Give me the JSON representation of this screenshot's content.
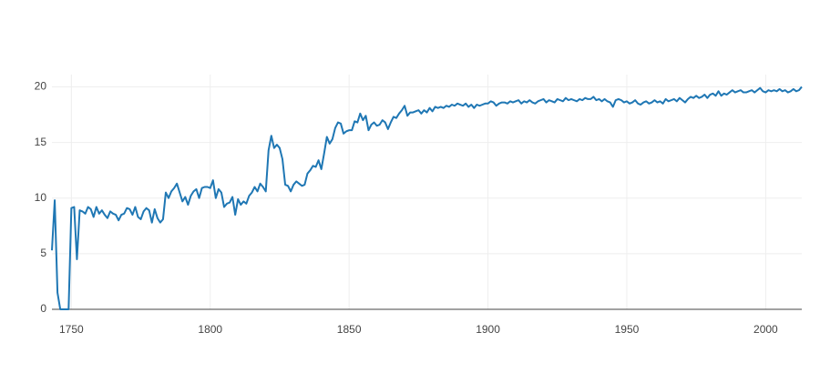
{
  "chart_data": {
    "type": "line",
    "color": "#1f77b4",
    "grid": true,
    "xlim": [
      1743,
      2013
    ],
    "xticks": [
      1750,
      1800,
      1850,
      1900,
      1950,
      2000
    ],
    "ylim": [
      0,
      21.1
    ],
    "yticks": [
      0,
      5,
      10,
      15,
      20
    ],
    "x": [
      1743,
      1744,
      1745,
      1746,
      1747,
      1748,
      1749,
      1750,
      1751,
      1752,
      1753,
      1754,
      1755,
      1756,
      1757,
      1758,
      1759,
      1760,
      1761,
      1762,
      1763,
      1764,
      1765,
      1766,
      1767,
      1768,
      1769,
      1770,
      1771,
      1772,
      1773,
      1774,
      1775,
      1776,
      1777,
      1778,
      1779,
      1780,
      1781,
      1782,
      1783,
      1784,
      1785,
      1786,
      1787,
      1788,
      1789,
      1790,
      1791,
      1792,
      1793,
      1794,
      1795,
      1796,
      1797,
      1798,
      1799,
      1800,
      1801,
      1802,
      1803,
      1804,
      1805,
      1806,
      1807,
      1808,
      1809,
      1810,
      1811,
      1812,
      1813,
      1814,
      1815,
      1816,
      1817,
      1818,
      1819,
      1820,
      1821,
      1822,
      1823,
      1824,
      1825,
      1826,
      1827,
      1828,
      1829,
      1830,
      1831,
      1832,
      1833,
      1834,
      1835,
      1836,
      1837,
      1838,
      1839,
      1840,
      1841,
      1842,
      1843,
      1844,
      1845,
      1846,
      1847,
      1848,
      1849,
      1850,
      1851,
      1852,
      1853,
      1854,
      1855,
      1856,
      1857,
      1858,
      1859,
      1860,
      1861,
      1862,
      1863,
      1864,
      1865,
      1866,
      1867,
      1868,
      1869,
      1870,
      1871,
      1872,
      1873,
      1874,
      1875,
      1876,
      1877,
      1878,
      1879,
      1880,
      1881,
      1882,
      1883,
      1884,
      1885,
      1886,
      1887,
      1888,
      1889,
      1890,
      1891,
      1892,
      1893,
      1894,
      1895,
      1896,
      1897,
      1898,
      1899,
      1900,
      1901,
      1902,
      1903,
      1904,
      1905,
      1906,
      1907,
      1908,
      1909,
      1910,
      1911,
      1912,
      1913,
      1914,
      1915,
      1916,
      1917,
      1918,
      1919,
      1920,
      1921,
      1922,
      1923,
      1924,
      1925,
      1926,
      1927,
      1928,
      1929,
      1930,
      1931,
      1932,
      1933,
      1934,
      1935,
      1936,
      1937,
      1938,
      1939,
      1940,
      1941,
      1942,
      1943,
      1944,
      1945,
      1946,
      1947,
      1948,
      1949,
      1950,
      1951,
      1952,
      1953,
      1954,
      1955,
      1956,
      1957,
      1958,
      1959,
      1960,
      1961,
      1962,
      1963,
      1964,
      1965,
      1966,
      1967,
      1968,
      1969,
      1970,
      1971,
      1972,
      1973,
      1974,
      1975,
      1976,
      1977,
      1978,
      1979,
      1980,
      1981,
      1982,
      1983,
      1984,
      1985,
      1986,
      1987,
      1988,
      1989,
      1990,
      1991,
      1992,
      1993,
      1994,
      1995,
      1996,
      1997,
      1998,
      1999,
      2000,
      2001,
      2002,
      2003,
      2004,
      2005,
      2006,
      2007,
      2008,
      2009,
      2010,
      2011,
      2012,
      2013
    ],
    "values": [
      5.3,
      9.8,
      1.5,
      0,
      0,
      0,
      0,
      9.1,
      9.2,
      4.5,
      8.9,
      8.8,
      8.6,
      9.2,
      9.0,
      8.3,
      9.2,
      8.6,
      8.9,
      8.5,
      8.2,
      8.8,
      8.6,
      8.5,
      8.0,
      8.5,
      8.6,
      9.1,
      9.0,
      8.5,
      9.2,
      8.3,
      8.1,
      8.8,
      9.1,
      8.9,
      7.8,
      9.0,
      8.2,
      7.8,
      8.1,
      10.5,
      10.0,
      10.6,
      10.9,
      11.3,
      10.5,
      9.7,
      10.1,
      9.4,
      10.2,
      10.6,
      10.8,
      10.0,
      10.9,
      11.0,
      11.0,
      10.9,
      11.6,
      10.0,
      10.8,
      10.5,
      9.2,
      9.5,
      9.6,
      10.1,
      8.5,
      9.9,
      9.4,
      9.7,
      9.5,
      10.2,
      10.5,
      11.0,
      10.6,
      11.3,
      11.0,
      10.6,
      14.3,
      15.6,
      14.5,
      14.8,
      14.5,
      13.5,
      11.2,
      11.1,
      10.6,
      11.2,
      11.5,
      11.3,
      11.1,
      11.2,
      12.2,
      12.5,
      12.9,
      12.8,
      13.4,
      12.6,
      14.0,
      15.5,
      14.9,
      15.3,
      16.3,
      16.8,
      16.7,
      15.8,
      16.0,
      16.1,
      16.1,
      16.9,
      16.8,
      17.6,
      17.0,
      17.4,
      16.1,
      16.6,
      16.8,
      16.5,
      16.6,
      17.0,
      16.8,
      16.2,
      16.8,
      17.3,
      17.2,
      17.6,
      17.9,
      18.3,
      17.4,
      17.7,
      17.7,
      17.8,
      17.9,
      17.6,
      17.9,
      17.7,
      18.1,
      17.8,
      18.2,
      18.1,
      18.2,
      18.1,
      18.3,
      18.2,
      18.4,
      18.3,
      18.5,
      18.4,
      18.3,
      18.5,
      18.2,
      18.4,
      18.1,
      18.4,
      18.3,
      18.4,
      18.5,
      18.5,
      18.7,
      18.6,
      18.3,
      18.5,
      18.6,
      18.6,
      18.5,
      18.7,
      18.6,
      18.7,
      18.8,
      18.5,
      18.7,
      18.6,
      18.8,
      18.6,
      18.5,
      18.7,
      18.8,
      18.9,
      18.6,
      18.8,
      18.7,
      18.6,
      18.9,
      18.8,
      18.7,
      19.0,
      18.8,
      18.9,
      18.8,
      18.7,
      18.9,
      18.8,
      19.0,
      18.9,
      18.9,
      19.1,
      18.8,
      18.9,
      18.7,
      18.9,
      18.7,
      18.6,
      18.2,
      18.8,
      18.9,
      18.8,
      18.6,
      18.7,
      18.5,
      18.6,
      18.8,
      18.5,
      18.4,
      18.6,
      18.7,
      18.5,
      18.6,
      18.8,
      18.6,
      18.7,
      18.5,
      18.9,
      18.7,
      18.8,
      18.9,
      18.7,
      19.0,
      18.8,
      18.6,
      18.9,
      19.1,
      19.0,
      19.2,
      19.0,
      19.1,
      19.3,
      19.0,
      19.3,
      19.4,
      19.2,
      19.6,
      19.2,
      19.4,
      19.3,
      19.5,
      19.7,
      19.5,
      19.6,
      19.7,
      19.5,
      19.5,
      19.6,
      19.7,
      19.5,
      19.7,
      19.9,
      19.6,
      19.5,
      19.7,
      19.6,
      19.7,
      19.6,
      19.8,
      19.6,
      19.7,
      19.5,
      19.6,
      19.8,
      19.6,
      19.7,
      20.0
    ]
  }
}
